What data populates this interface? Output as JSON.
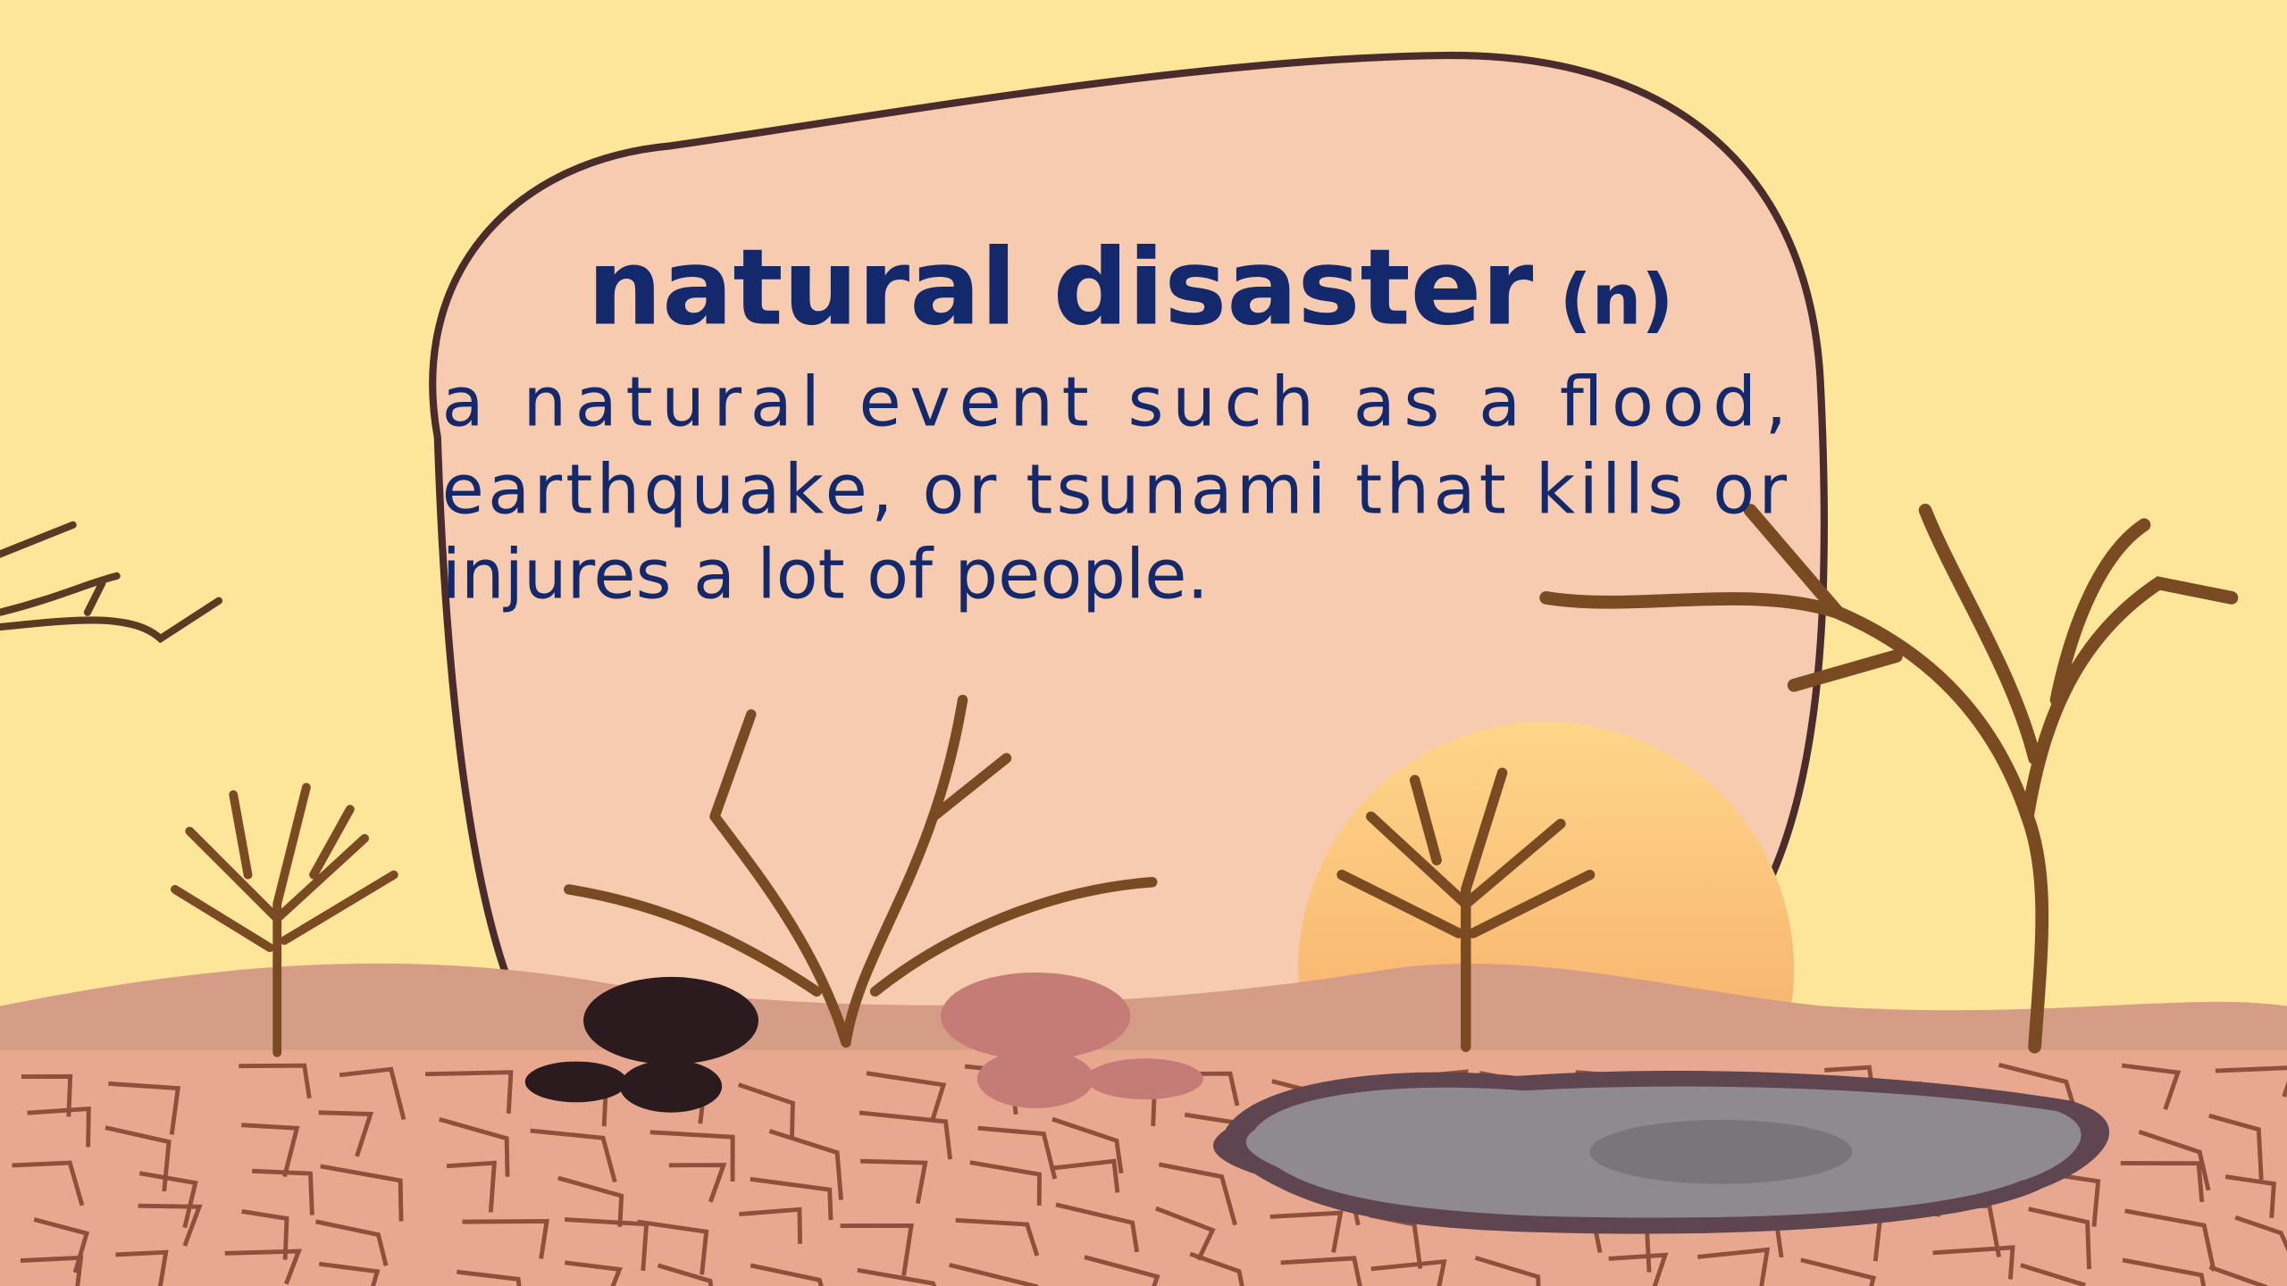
{
  "term": "natural disaster",
  "part_of_speech": "(n)",
  "definition_lines": [
    "a natural event such as a flood,",
    "earthquake, or tsunami that kills or",
    "injures a lot of people."
  ]
}
